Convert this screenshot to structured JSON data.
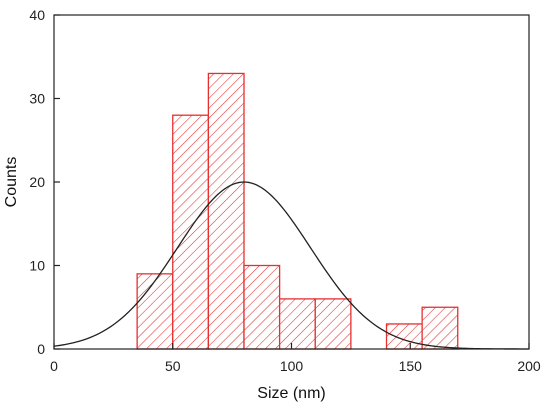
{
  "chart_data": {
    "type": "bar",
    "title": "",
    "xlabel": "Size (nm)",
    "ylabel": "Counts",
    "xlim": [
      0,
      200
    ],
    "ylim": [
      0,
      40
    ],
    "xticks": [
      0,
      50,
      100,
      150,
      200
    ],
    "yticks": [
      0,
      10,
      20,
      30,
      40
    ],
    "bin_width": 15,
    "bins": [
      {
        "start": 35,
        "end": 50,
        "count": 9
      },
      {
        "start": 50,
        "end": 65,
        "count": 28
      },
      {
        "start": 65,
        "end": 80,
        "count": 33
      },
      {
        "start": 80,
        "end": 95,
        "count": 10
      },
      {
        "start": 95,
        "end": 110,
        "count": 6
      },
      {
        "start": 110,
        "end": 125,
        "count": 6
      },
      {
        "start": 140,
        "end": 155,
        "count": 3
      },
      {
        "start": 155,
        "end": 170,
        "count": 5
      }
    ],
    "fit": {
      "type": "gaussian",
      "mean": 80,
      "sigma": 28,
      "peak": 20
    },
    "bar_color": "#e53030",
    "hatch": "diagonal",
    "fit_color": "#222222",
    "grid": false,
    "legend": "none"
  }
}
